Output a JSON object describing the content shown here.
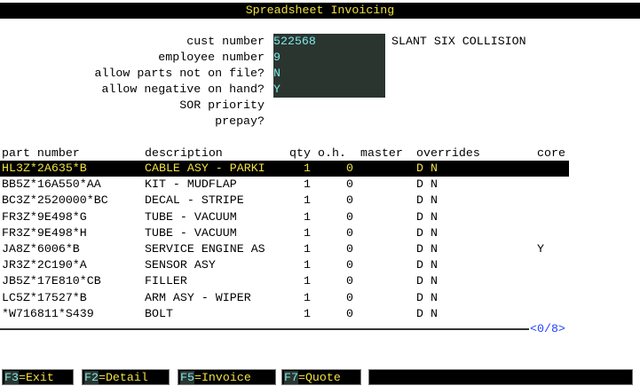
{
  "title": "Spreadsheet Invoicing",
  "form": {
    "fields": [
      {
        "label": "cust number",
        "value": "522568"
      },
      {
        "label": "employee number",
        "value": "9"
      },
      {
        "label": "allow parts not on file?",
        "value": "N"
      },
      {
        "label": "allow negative on hand?",
        "value": "Y"
      },
      {
        "label": "SOR priority",
        "value": ""
      },
      {
        "label": "prepay?",
        "value": ""
      }
    ],
    "customer_name": "SLANT SIX COLLISION"
  },
  "table": {
    "headers": {
      "part": "part number",
      "desc": "description",
      "qty": "qty",
      "oh": "o.h.",
      "master": "master",
      "overrides": "overrides",
      "core": "core"
    },
    "rows": [
      {
        "part": "HL3Z*2A635*B",
        "desc": "CABLE ASY - PARKI",
        "qty": "1",
        "oh": "0",
        "ovr": "D N",
        "core": ""
      },
      {
        "part": "BB5Z*16A550*AA",
        "desc": "KIT - MUDFLAP",
        "qty": "1",
        "oh": "0",
        "ovr": "D N",
        "core": ""
      },
      {
        "part": "BC3Z*2520000*BC",
        "desc": "DECAL - STRIPE",
        "qty": "1",
        "oh": "0",
        "ovr": "D N",
        "core": ""
      },
      {
        "part": "FR3Z*9E498*G",
        "desc": "TUBE - VACUUM",
        "qty": "1",
        "oh": "0",
        "ovr": "D N",
        "core": ""
      },
      {
        "part": "FR3Z*9E498*H",
        "desc": "TUBE - VACUUM",
        "qty": "1",
        "oh": "0",
        "ovr": "D N",
        "core": ""
      },
      {
        "part": "JA8Z*6006*B",
        "desc": "SERVICE ENGINE AS",
        "qty": "1",
        "oh": "0",
        "ovr": "D N",
        "core": "Y"
      },
      {
        "part": "JR3Z*2C190*A",
        "desc": "SENSOR ASY",
        "qty": "1",
        "oh": "0",
        "ovr": "D N",
        "core": ""
      },
      {
        "part": "JB5Z*17E810*CB",
        "desc": "FILLER",
        "qty": "1",
        "oh": "0",
        "ovr": "D N",
        "core": ""
      },
      {
        "part": "LC5Z*17527*B",
        "desc": "ARM ASY - WIPER",
        "qty": "1",
        "oh": "0",
        "ovr": "D N",
        "core": ""
      },
      {
        "part": "*W716811*S439",
        "desc": "BOLT",
        "qty": "1",
        "oh": "0",
        "ovr": "D N",
        "core": ""
      }
    ],
    "selected_index": 0,
    "pager": "<0/8>"
  },
  "fkeys": [
    {
      "key": "F3",
      "label": "=Exit"
    },
    {
      "key": "F2",
      "label": "=Detail"
    },
    {
      "key": "F5",
      "label": "=Invoice"
    },
    {
      "key": "F7",
      "label": "=Quote"
    }
  ],
  "colors": {
    "highlight_text": "#f0e040",
    "input_text": "#7fe8e8",
    "input_bg": "#2a3530",
    "pager": "#2040ff"
  }
}
